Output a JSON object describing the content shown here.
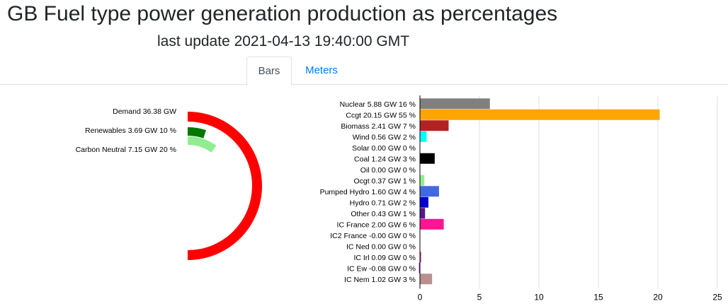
{
  "header": {
    "title": "GB Fuel type power generation production as percentages",
    "last_update": "last update 2021-04-13 19:40:00 GMT"
  },
  "tabs": [
    {
      "label": "Bars",
      "active": true
    },
    {
      "label": "Meters",
      "active": false
    }
  ],
  "chart_data": [
    {
      "type": "radial-bar",
      "max_value": 36.38,
      "series": [
        {
          "label": "Demand 36.38 GW",
          "value": 36.38,
          "color": "#ff0000"
        },
        {
          "label": "Renewables 3.69 GW 10 %",
          "value": 3.69,
          "color": "#007700"
        },
        {
          "label": "Carbon Neutral 7.15 GW 20 %",
          "value": 7.15,
          "color": "#90ee90"
        }
      ]
    },
    {
      "type": "bar",
      "orientation": "horizontal",
      "xlim": [
        0,
        25
      ],
      "xticks": [
        0,
        5,
        10,
        15,
        20,
        25
      ],
      "grid": true,
      "categories": [
        "Nuclear 5.88 GW 16 %",
        "Ccgt 20.15 GW 55 %",
        "Biomass 2.41 GW 7 %",
        "Wind 0.56 GW 2 %",
        "Solar 0.00 GW 0 %",
        "Coal 1.24 GW 3 %",
        "Oil 0.00 GW 0 %",
        "Ocgt 0.37 GW 1 %",
        "Pumped Hydro 1.60 GW 4 %",
        "Hydro 0.71 GW 2 %",
        "Other 0.43 GW 1 %",
        "IC France 2.00 GW 6 %",
        "IC2 France -0.00 GW 0 %",
        "IC Ned 0.00 GW 0 %",
        "IC Irl 0.09 GW 0 %",
        "IC Ew -0.08 GW 0 %",
        "IC Nem 1.02 GW 3 %"
      ],
      "values": [
        5.88,
        20.15,
        2.41,
        0.56,
        0.0,
        1.24,
        0.0,
        0.37,
        1.6,
        0.71,
        0.43,
        2.0,
        -0.0,
        0.0,
        0.09,
        -0.08,
        1.02
      ],
      "colors": [
        "#808080",
        "#ffa500",
        "#b22222",
        "#00ffff",
        "#ffd700",
        "#000000",
        "#8b4513",
        "#90ee90",
        "#4169e1",
        "#0000cd",
        "#551a8b",
        "#ff1493",
        "#ff69b4",
        "#ff8c00",
        "#c71585",
        "#9400d3",
        "#bc8f8f"
      ]
    }
  ]
}
